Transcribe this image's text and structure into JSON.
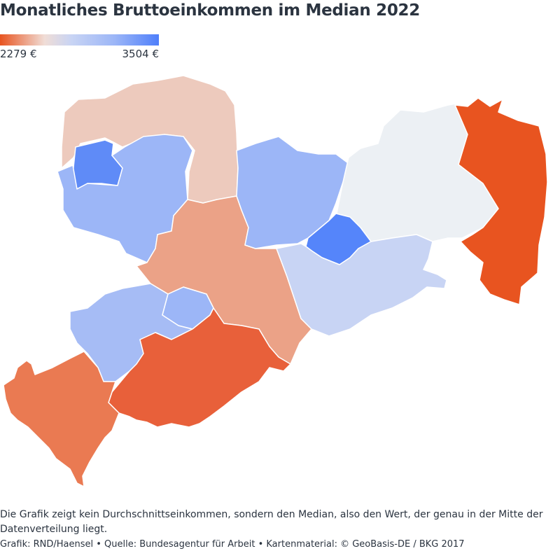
{
  "title": "Monatliches Bruttoeinkommen im Median 2022",
  "legend": {
    "min_label": "2279 €",
    "max_label": "3504 €",
    "colors": [
      "#e85420",
      "#f0ddd6",
      "#c8d4f4",
      "#9cb6f7",
      "#4f7ffa"
    ]
  },
  "regions": [
    {
      "id": "nordwest",
      "fill": "#edcabd"
    },
    {
      "id": "nordwest-stadt",
      "fill": "#5f8bf7"
    },
    {
      "id": "west",
      "fill": "#9cb6f7"
    },
    {
      "id": "mitte",
      "fill": "#eba287"
    },
    {
      "id": "nord-mitte",
      "fill": "#9cb6f7"
    },
    {
      "id": "nordost",
      "fill": "#ecf0f4"
    },
    {
      "id": "ost",
      "fill": "#e85420"
    },
    {
      "id": "mitte-stadt",
      "fill": "#5585fa"
    },
    {
      "id": "suedost",
      "fill": "#c8d4f4"
    },
    {
      "id": "suedwest-mitte",
      "fill": "#a6bcf5"
    },
    {
      "id": "suedwest-stadt",
      "fill": "#9cb6f7"
    },
    {
      "id": "sued",
      "fill": "#e8603a"
    },
    {
      "id": "suedwest",
      "fill": "#ea7a52"
    }
  ],
  "note": "Die Grafik zeigt kein Durchschnittseinkommen, sondern den Median, also den Wert, der genau in der Mitte der Datenverteilung liegt.",
  "credit": "Grafik: RND/Haensel • Quelle: Bundesagentur für Arbeit • Kartenmaterial: © GeoBasis-DE / BKG 2017"
}
